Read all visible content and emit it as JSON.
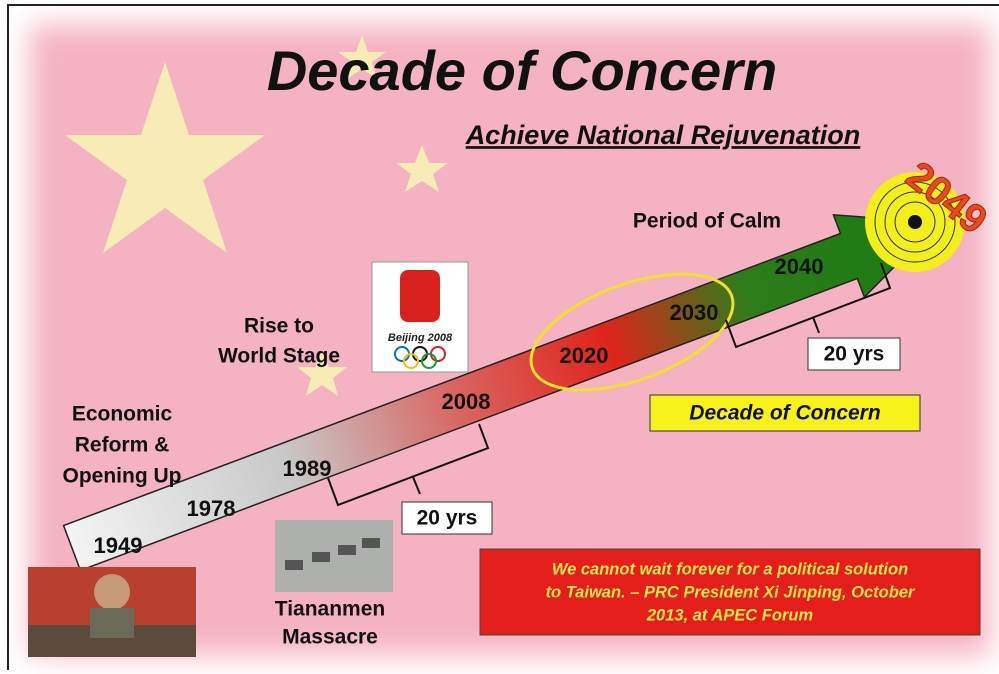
{
  "header": {
    "title": "Decade of Concern",
    "subtitle": "Achieve National Rejuvenation"
  },
  "timeline": {
    "years": [
      "1949",
      "1978",
      "1989",
      "2008",
      "2020",
      "2030",
      "2040"
    ],
    "end_year": "2049"
  },
  "phases": {
    "economic_reform": [
      "Economic",
      "Reform &",
      "Opening Up"
    ],
    "rise": [
      "Rise to",
      "World Stage"
    ],
    "calm": "Period of Calm"
  },
  "events": {
    "tiananmen": [
      "Tiananmen",
      "Massacre"
    ],
    "olympics_logo": "Beijing 2008"
  },
  "spans": [
    "20 yrs",
    "20 yrs"
  ],
  "decade_label": "Decade of Concern",
  "quote": [
    "We cannot wait forever for a political solution",
    "to Taiwan. – PRC President Xi Jinping, October",
    "2013, at APEC Forum"
  ]
}
